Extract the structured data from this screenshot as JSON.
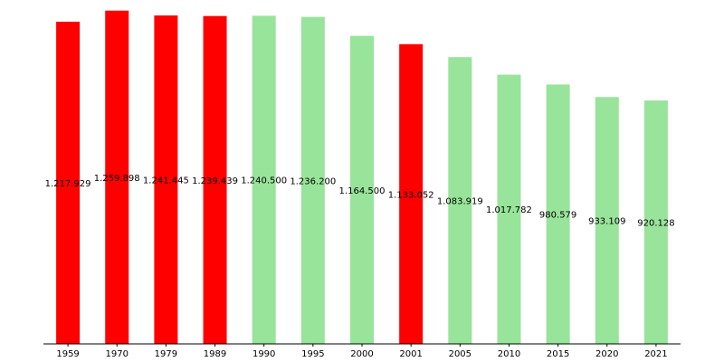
{
  "chart_data": {
    "type": "bar",
    "title": "",
    "xlabel": "",
    "ylabel": "",
    "categories": [
      "1959",
      "1970",
      "1979",
      "1989",
      "1990",
      "1995",
      "2000",
      "2001",
      "2005",
      "2010",
      "2015",
      "2020",
      "2021"
    ],
    "values": [
      1217929,
      1259898,
      1241445,
      1239439,
      1240500,
      1236200,
      1164500,
      1133052,
      1083919,
      1017782,
      980579,
      933109,
      920128
    ],
    "value_labels": [
      "1.217.929",
      "1.259.898",
      "1.241.445",
      "1.239.439",
      "1.240.500",
      "1.236.200",
      "1.164.500",
      "1.133.052",
      "1.083.919",
      "1.017.782",
      "980.579",
      "933.109",
      "920.128"
    ],
    "bar_colors": [
      "#ff0000",
      "#ff0000",
      "#ff0000",
      "#ff0000",
      "#98e49a",
      "#98e49a",
      "#98e49a",
      "#ff0000",
      "#98e49a",
      "#98e49a",
      "#98e49a",
      "#98e49a",
      "#98e49a"
    ],
    "ylim": [
      0,
      1300000
    ],
    "grid": false,
    "legend": "none"
  }
}
